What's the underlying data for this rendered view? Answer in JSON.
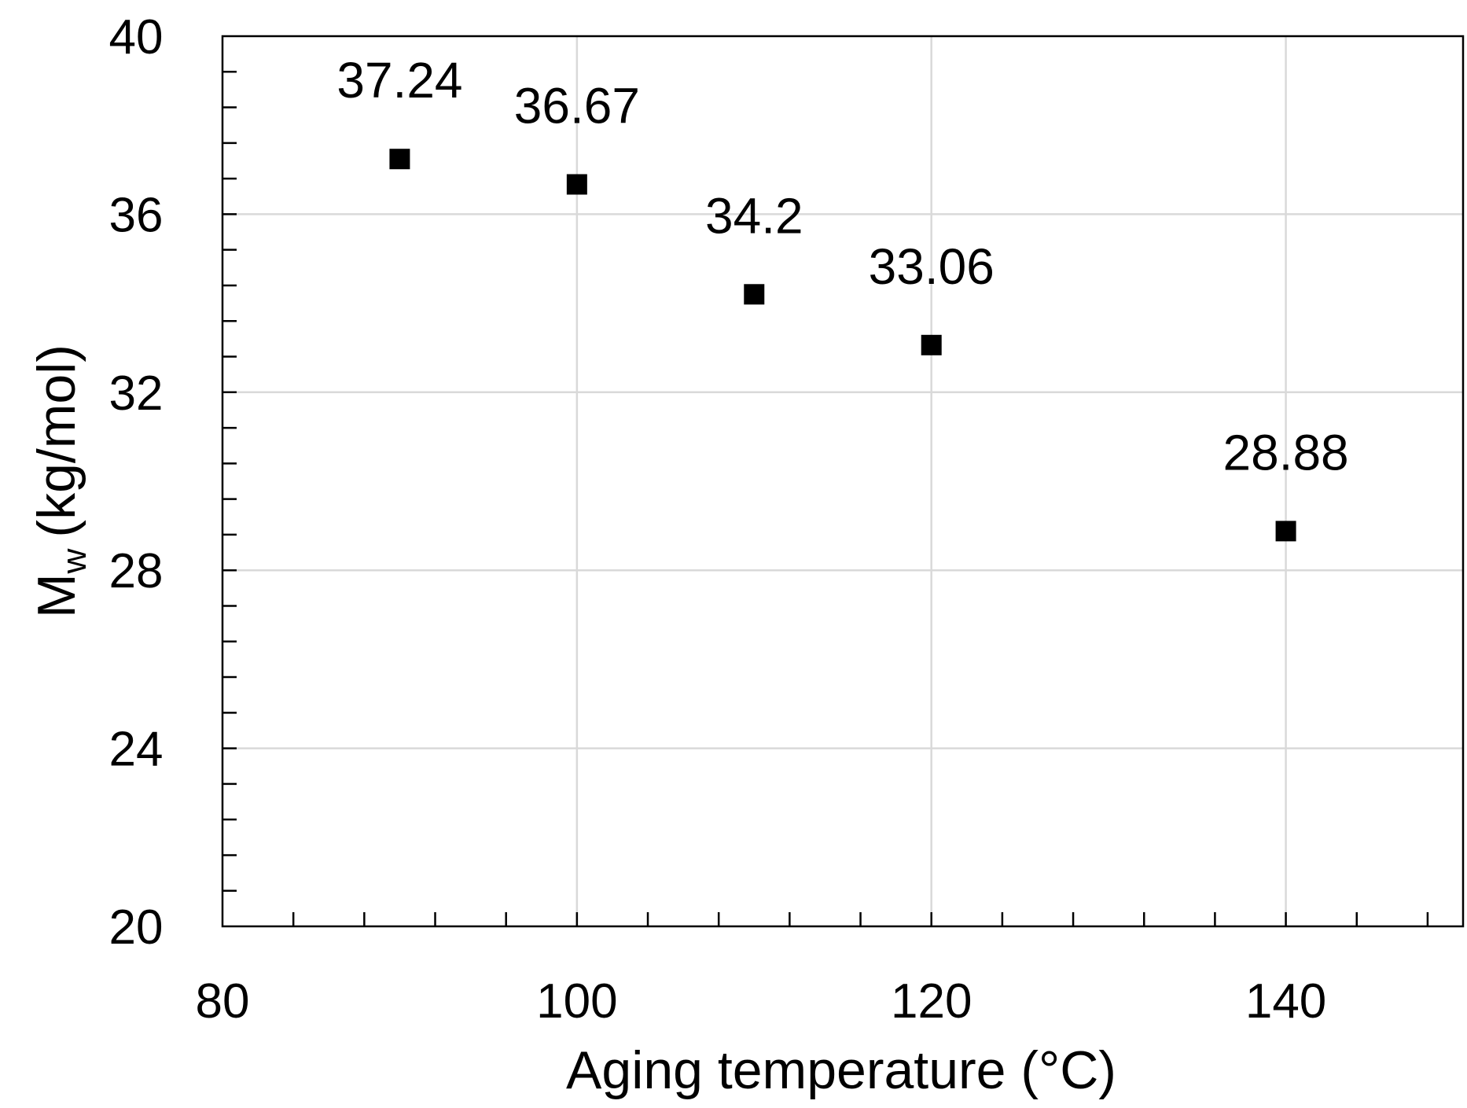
{
  "chart_data": {
    "type": "scatter",
    "title": "",
    "xlabel": "Aging temperature (°C)",
    "ylabel": {
      "symbol": "M",
      "subscript": "w",
      "unit": "(kg/mol)"
    },
    "xlim": [
      80,
      150
    ],
    "ylim": [
      20,
      40
    ],
    "x_major_ticks": [
      80,
      100,
      120,
      140
    ],
    "x_minor_step": 4,
    "y_major_ticks": [
      20,
      24,
      28,
      32,
      36,
      40
    ],
    "y_minor_step": 0.8,
    "grid": true,
    "legend": "none",
    "marker": "square",
    "marker_color": "#000000",
    "grid_color": "#d9d9d9",
    "series": [
      {
        "name": "Mw",
        "x": [
          90,
          100,
          110,
          120,
          140
        ],
        "y": [
          37.24,
          36.67,
          34.2,
          33.06,
          28.88
        ],
        "labels": [
          "37.24",
          "36.67",
          "34.2",
          "33.06",
          "28.88"
        ]
      }
    ]
  }
}
